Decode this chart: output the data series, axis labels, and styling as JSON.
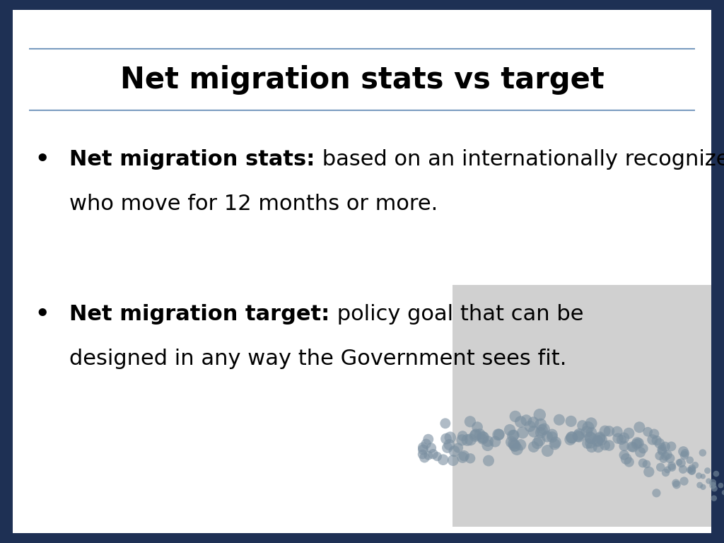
{
  "title": "Net migration stats vs target",
  "title_fontsize": 30,
  "title_fontweight": "bold",
  "title_color": "#000000",
  "background_color": "#ffffff",
  "border_color": "#1e3054",
  "separator_color": "#7a9cc0",
  "bullet1_bold": "Net migration stats:",
  "bullet1_line1_normal": " based on an internationally recognized definition of people",
  "bullet1_line2": "who move for 12 months or more.",
  "bullet2_bold": "Net migration target:",
  "bullet2_line1_normal": " policy goal that can be",
  "bullet2_line2": "designed in any way the Government sees fit.",
  "bullet_fontsize": 22,
  "bullet_color": "#000000",
  "dot_bg_color": "#d0d0d0",
  "dot_color": "#7a8fa0"
}
